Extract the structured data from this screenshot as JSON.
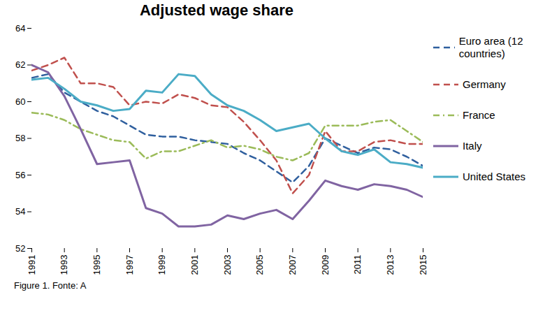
{
  "chart_data": {
    "type": "line",
    "title": "Adjusted wage share",
    "caption": "Figure 1. Fonte: A",
    "x": [
      1991,
      1992,
      1993,
      1994,
      1995,
      1996,
      1997,
      1998,
      1999,
      2000,
      2001,
      2002,
      2003,
      2004,
      2005,
      2006,
      2007,
      2008,
      2009,
      2010,
      2011,
      2012,
      2013,
      2014,
      2015
    ],
    "xlim": [
      1991,
      2015
    ],
    "xticks": [
      1991,
      1993,
      1995,
      1997,
      1999,
      2001,
      2003,
      2005,
      2007,
      2009,
      2011,
      2013,
      2015
    ],
    "ylim": [
      52,
      64
    ],
    "yticks": [
      52,
      54,
      56,
      58,
      60,
      62,
      64
    ],
    "grid": false,
    "legend": "right",
    "series": [
      {
        "name": "Euro area (12 countries)",
        "color": "#2f5f9e",
        "line_style": "dashed",
        "values": [
          61.3,
          61.5,
          60.5,
          60.0,
          59.5,
          59.2,
          58.7,
          58.2,
          58.1,
          58.1,
          57.9,
          57.8,
          57.7,
          57.2,
          56.8,
          56.2,
          55.6,
          56.5,
          58.0,
          57.6,
          57.2,
          57.5,
          57.4,
          57.0,
          56.5
        ]
      },
      {
        "name": "Germany",
        "color": "#c0504d",
        "line_style": "dashed",
        "values": [
          61.7,
          62.0,
          62.4,
          61.0,
          61.0,
          60.8,
          59.8,
          60.0,
          59.9,
          60.4,
          60.2,
          59.8,
          59.7,
          58.9,
          57.9,
          56.8,
          55.0,
          56.0,
          58.4,
          57.3,
          57.3,
          57.8,
          57.9,
          57.7,
          57.7
        ]
      },
      {
        "name": "France",
        "color": "#9bbb59",
        "line_style": "dashdot",
        "values": [
          59.4,
          59.3,
          59.0,
          58.5,
          58.2,
          57.9,
          57.8,
          56.9,
          57.3,
          57.3,
          57.6,
          57.9,
          57.5,
          57.6,
          57.4,
          57.0,
          56.8,
          57.2,
          58.7,
          58.7,
          58.7,
          58.9,
          59.0,
          58.4,
          57.8
        ]
      },
      {
        "name": "Italy",
        "color": "#8064a2",
        "line_style": "solid",
        "values": [
          62.0,
          61.6,
          60.3,
          58.5,
          56.6,
          56.7,
          56.8,
          54.2,
          53.9,
          53.2,
          53.2,
          53.3,
          53.8,
          53.6,
          53.9,
          54.1,
          53.6,
          54.6,
          55.7,
          55.4,
          55.2,
          55.5,
          55.4,
          55.2,
          54.8
        ]
      },
      {
        "name": "United States",
        "color": "#4bacc6",
        "line_style": "solid",
        "values": [
          61.2,
          61.3,
          60.7,
          60.0,
          59.8,
          59.5,
          59.6,
          60.6,
          60.5,
          61.5,
          61.4,
          60.4,
          59.8,
          59.5,
          59.0,
          58.4,
          58.6,
          58.8,
          58.0,
          57.3,
          57.1,
          57.4,
          56.7,
          56.6,
          56.4
        ]
      }
    ]
  }
}
